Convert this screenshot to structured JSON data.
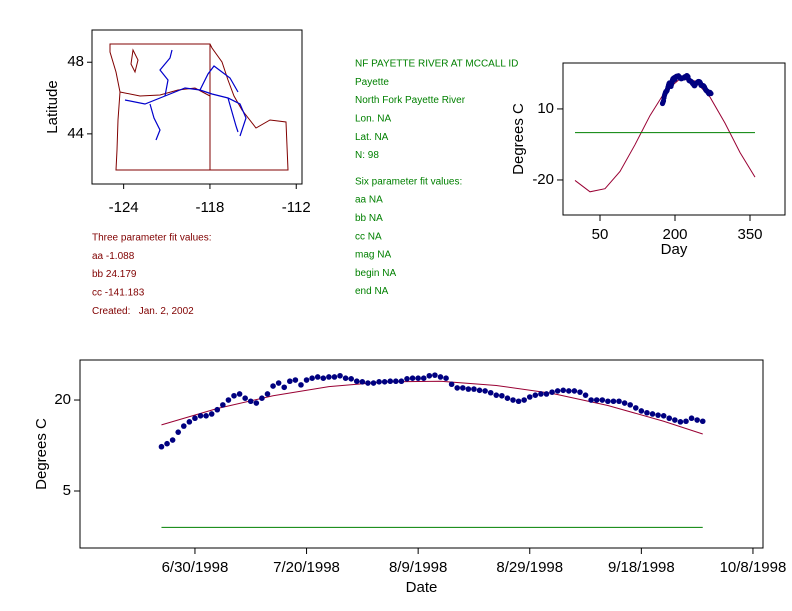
{
  "map": {
    "ylabel": "Latitude",
    "xlim": [
      -126.2,
      -111.6
    ],
    "ylim": [
      41.2,
      49.8
    ],
    "xticks": [
      -124,
      -118,
      -112
    ],
    "yticks": [
      44,
      48
    ]
  },
  "notes_left": [
    "Three parameter fit values:",
    "aa -1.088",
    "bb 24.179",
    "cc -141.183",
    "Created:   Jan. 2, 2002"
  ],
  "notes_right": [
    "NF PAYETTE RIVER AT MCCALL ID",
    "Payette",
    "North Fork Payette River",
    "Lon. NA",
    "Lat. NA",
    "N: 98",
    "Six parameter fit values:",
    "aa NA",
    "bb NA",
    "cc NA",
    "mag NA",
    "begin NA",
    "end NA"
  ],
  "chart_data": [
    {
      "type": "line",
      "xlabel": "Day",
      "ylabel": "Degrees C",
      "xlim": [
        -24,
        420
      ],
      "ylim": [
        -34.8,
        29.4
      ],
      "xticks": [
        50,
        200,
        350
      ],
      "yticks": [
        -20,
        10
      ],
      "series": [
        {
          "type": "line",
          "color": "#990033",
          "x": [
            0,
            30,
            60,
            90,
            120,
            150,
            180,
            210,
            240,
            270,
            300,
            330,
            360
          ],
          "values": [
            -20.2,
            -25.0,
            -23.7,
            -16.4,
            -5.1,
            7.2,
            17.3,
            22.7,
            21.8,
            15.0,
            4.0,
            -8.4,
            -18.8
          ]
        },
        {
          "type": "line",
          "color": "#008000",
          "x": [
            0,
            360
          ],
          "values": [
            0,
            0
          ]
        },
        {
          "type": "scatter",
          "color": "#000080",
          "x": [
            175,
            176,
            177,
            178,
            179,
            180,
            181,
            182,
            183,
            184,
            185,
            186,
            187,
            188,
            189,
            190,
            191,
            192,
            193,
            194,
            195,
            196,
            197,
            198,
            199,
            200,
            201,
            202,
            203,
            204,
            205,
            206,
            207,
            208,
            209,
            210,
            211,
            212,
            213,
            214,
            215,
            216,
            217,
            218,
            219,
            220,
            221,
            222,
            223,
            224,
            225,
            226,
            227,
            228,
            229,
            230,
            231,
            232,
            233,
            234,
            235,
            236,
            237,
            238,
            239,
            240,
            241,
            242,
            243,
            244,
            245,
            246,
            247,
            248,
            249,
            250,
            251,
            252,
            253,
            254,
            255,
            256,
            257,
            258,
            259,
            260,
            261,
            262,
            263,
            264,
            265,
            266,
            267,
            268,
            269,
            270,
            271,
            272
          ],
          "values": [
            12.3,
            12.8,
            13.4,
            14.7,
            15.7,
            16.4,
            17.0,
            17.4,
            17.4,
            17.7,
            18.4,
            19.2,
            20.0,
            20.7,
            21.0,
            20.3,
            19.8,
            19.5,
            20.3,
            21.0,
            22.3,
            22.8,
            22.1,
            23.1,
            23.3,
            22.5,
            23.3,
            23.6,
            23.8,
            23.6,
            23.8,
            23.8,
            24.0,
            23.6,
            23.5,
            23.1,
            23.0,
            22.8,
            22.8,
            23.0,
            23.0,
            23.1,
            23.1,
            23.1,
            23.5,
            23.6,
            23.6,
            23.6,
            24.0,
            24.1,
            23.8,
            23.6,
            22.6,
            22.0,
            22.0,
            21.8,
            21.8,
            21.6,
            21.5,
            21.2,
            20.8,
            20.7,
            20.3,
            20.0,
            19.8,
            20.0,
            20.5,
            20.8,
            21.0,
            21.0,
            21.3,
            21.5,
            21.6,
            21.5,
            21.5,
            21.3,
            20.8,
            20.0,
            20.0,
            20.0,
            19.8,
            19.8,
            19.8,
            19.5,
            19.2,
            18.7,
            18.2,
            17.9,
            17.7,
            17.5,
            17.4,
            17.0,
            16.7,
            16.4,
            16.5,
            17.0,
            16.7,
            16.5
          ]
        }
      ]
    },
    {
      "type": "line",
      "xlabel": "Date",
      "ylabel": "Degrees C",
      "xlim": [
        160.4,
        282.8
      ],
      "ylim": [
        -4.4,
        26.6
      ],
      "xticks": [
        {
          "value": 181,
          "label": "6/30/1998"
        },
        {
          "value": 201,
          "label": "7/20/1998"
        },
        {
          "value": 221,
          "label": "8/9/1998"
        },
        {
          "value": 241,
          "label": "8/29/1998"
        },
        {
          "value": 261,
          "label": "9/18/1998"
        },
        {
          "value": 281,
          "label": "10/8/1998"
        }
      ],
      "yticks": [
        5,
        20
      ],
      "series": [
        {
          "type": "line",
          "color": "#990033",
          "x": [
            175,
            185,
            195,
            205,
            215,
            225,
            235,
            245,
            255,
            265,
            272
          ],
          "values": [
            15.9,
            18.6,
            20.7,
            22.2,
            23.0,
            23.1,
            22.4,
            21.1,
            19.1,
            16.5,
            14.4
          ]
        },
        {
          "type": "line",
          "color": "#008000",
          "x": [
            175,
            272
          ],
          "values": [
            -1,
            -1
          ]
        },
        {
          "type": "scatter",
          "color": "#000080",
          "x": [
            175,
            176,
            177,
            178,
            179,
            180,
            181,
            182,
            183,
            184,
            185,
            186,
            187,
            188,
            189,
            190,
            191,
            192,
            193,
            194,
            195,
            196,
            197,
            198,
            199,
            200,
            201,
            202,
            203,
            204,
            205,
            206,
            207,
            208,
            209,
            210,
            211,
            212,
            213,
            214,
            215,
            216,
            217,
            218,
            219,
            220,
            221,
            222,
            223,
            224,
            225,
            226,
            227,
            228,
            229,
            230,
            231,
            232,
            233,
            234,
            235,
            236,
            237,
            238,
            239,
            240,
            241,
            242,
            243,
            244,
            245,
            246,
            247,
            248,
            249,
            250,
            251,
            252,
            253,
            254,
            255,
            256,
            257,
            258,
            259,
            260,
            261,
            262,
            263,
            264,
            265,
            266,
            267,
            268,
            269,
            270,
            271,
            272
          ],
          "values": [
            12.3,
            12.8,
            13.4,
            14.7,
            15.7,
            16.4,
            17.0,
            17.4,
            17.4,
            17.7,
            18.4,
            19.2,
            20.0,
            20.7,
            21.0,
            20.3,
            19.8,
            19.5,
            20.3,
            21.0,
            22.3,
            22.8,
            22.1,
            23.1,
            23.3,
            22.5,
            23.3,
            23.6,
            23.8,
            23.6,
            23.8,
            23.8,
            24.0,
            23.6,
            23.5,
            23.1,
            23.0,
            22.8,
            22.8,
            23.0,
            23.0,
            23.1,
            23.1,
            23.1,
            23.5,
            23.6,
            23.6,
            23.6,
            24.0,
            24.1,
            23.8,
            23.6,
            22.6,
            22.0,
            22.0,
            21.8,
            21.8,
            21.6,
            21.5,
            21.2,
            20.8,
            20.7,
            20.3,
            20.0,
            19.8,
            20.0,
            20.5,
            20.8,
            21.0,
            21.0,
            21.3,
            21.5,
            21.6,
            21.5,
            21.5,
            21.3,
            20.8,
            20.0,
            20.0,
            20.0,
            19.8,
            19.8,
            19.8,
            19.5,
            19.2,
            18.7,
            18.2,
            17.9,
            17.7,
            17.5,
            17.4,
            17.0,
            16.7,
            16.4,
            16.5,
            17.0,
            16.7,
            16.5
          ]
        }
      ]
    }
  ]
}
